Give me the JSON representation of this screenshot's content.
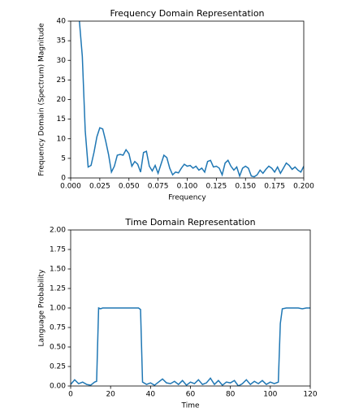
{
  "chart_data": [
    {
      "type": "line",
      "title": "Frequency Domain Representation",
      "x_label": "Frequency",
      "y_label": "Frequency Domain (Spectrum) Magnitude",
      "x": [
        0.0075,
        0.01,
        0.0125,
        0.015,
        0.0175,
        0.02,
        0.0225,
        0.025,
        0.0275,
        0.03,
        0.0325,
        0.035,
        0.0375,
        0.04,
        0.0425,
        0.045,
        0.0475,
        0.05,
        0.0525,
        0.055,
        0.0575,
        0.06,
        0.0625,
        0.065,
        0.0675,
        0.07,
        0.0725,
        0.075,
        0.0775,
        0.08,
        0.0825,
        0.085,
        0.0875,
        0.09,
        0.0925,
        0.095,
        0.0975,
        0.1,
        0.1025,
        0.105,
        0.1075,
        0.11,
        0.1125,
        0.115,
        0.1175,
        0.12,
        0.1225,
        0.125,
        0.1275,
        0.13,
        0.1325,
        0.135,
        0.1375,
        0.14,
        0.1425,
        0.145,
        0.1475,
        0.15,
        0.1525,
        0.155,
        0.1575,
        0.16,
        0.1625,
        0.165,
        0.1675,
        0.17,
        0.1725,
        0.175,
        0.1775,
        0.18,
        0.1825,
        0.185,
        0.1875,
        0.19,
        0.1925,
        0.195,
        0.1975,
        0.2
      ],
      "series": [
        {
          "color": "#1f77b4",
          "values": [
            40,
            31,
            12,
            2.8,
            3.2,
            6.5,
            10.5,
            12.8,
            12.5,
            9.5,
            6,
            1.5,
            3,
            5.8,
            6,
            5.8,
            7.2,
            6.2,
            3,
            4.2,
            3.5,
            1.5,
            6.5,
            6.8,
            3,
            1.8,
            3.2,
            1.2,
            3.5,
            5.8,
            5.2,
            2.5,
            0.8,
            1.5,
            1.3,
            2.5,
            3.5,
            3,
            3.2,
            2.5,
            3,
            2,
            2.5,
            1.5,
            4.2,
            4.5,
            2.8,
            3,
            2.5,
            0.8,
            3.8,
            4.5,
            3,
            2,
            2.8,
            0.5,
            2.5,
            3,
            2.5,
            0.5,
            0.3,
            0.8,
            2,
            1.2,
            2.2,
            3,
            2.5,
            1.5,
            2.8,
            1.2,
            2.5,
            3.8,
            3.2,
            2.2,
            2.8,
            2,
            1.5,
            3
          ]
        }
      ],
      "xlim": [
        0,
        0.2
      ],
      "ylim": [
        0,
        40
      ],
      "xticks": [
        {
          "value": 0,
          "label": "0.000"
        },
        {
          "value": 0.025,
          "label": "0.025"
        },
        {
          "value": 0.05,
          "label": "0.050"
        },
        {
          "value": 0.075,
          "label": "0.075"
        },
        {
          "value": 0.1,
          "label": "0.100"
        },
        {
          "value": 0.125,
          "label": "0.125"
        },
        {
          "value": 0.15,
          "label": "0.150"
        },
        {
          "value": 0.175,
          "label": "0.175"
        },
        {
          "value": 0.2,
          "label": "0.200"
        }
      ],
      "yticks": [
        0,
        5,
        10,
        15,
        20,
        25,
        30,
        35,
        40
      ]
    },
    {
      "type": "line",
      "title": "Time Domain Representation",
      "x_label": "Time",
      "y_label": "Language Probability",
      "x": [
        0,
        2,
        4,
        6,
        8,
        10,
        12,
        13,
        14,
        15,
        16,
        18,
        20,
        22,
        24,
        26,
        28,
        30,
        32,
        34,
        35,
        36,
        38,
        40,
        42,
        44,
        46,
        48,
        50,
        52,
        54,
        56,
        58,
        60,
        62,
        64,
        66,
        68,
        70,
        72,
        74,
        76,
        78,
        80,
        82,
        84,
        86,
        88,
        90,
        92,
        94,
        96,
        98,
        100,
        102,
        104,
        105,
        106,
        108,
        110,
        112,
        114,
        116,
        118,
        120
      ],
      "series": [
        {
          "color": "#1f77b4",
          "values": [
            0.02,
            0.08,
            0.03,
            0.05,
            0.02,
            0.01,
            0.05,
            0.06,
            1.0,
            0.99,
            1.0,
            1.0,
            1.0,
            1.0,
            1.0,
            1.0,
            1.0,
            1.0,
            1.0,
            1.0,
            0.98,
            0.05,
            0.02,
            0.04,
            0.01,
            0.05,
            0.09,
            0.04,
            0.03,
            0.06,
            0.02,
            0.07,
            0.01,
            0.05,
            0.03,
            0.08,
            0.02,
            0.04,
            0.1,
            0.02,
            0.07,
            0.01,
            0.05,
            0.04,
            0.07,
            0,
            0.03,
            0.08,
            0.02,
            0.06,
            0.03,
            0.07,
            0.02,
            0.05,
            0.03,
            0.05,
            0.8,
            0.99,
            1.0,
            1.0,
            1.0,
            1.0,
            0.99,
            1.0,
            1.0
          ]
        }
      ],
      "xlim": [
        0,
        120
      ],
      "ylim": [
        0,
        2
      ],
      "xticks": [
        0,
        20,
        40,
        60,
        80,
        100,
        120
      ],
      "yticks": [
        {
          "value": 0,
          "label": "0.00"
        },
        {
          "value": 0.25,
          "label": "0.25"
        },
        {
          "value": 0.5,
          "label": "0.50"
        },
        {
          "value": 0.75,
          "label": "0.75"
        },
        {
          "value": 1,
          "label": "1.00"
        },
        {
          "value": 1.25,
          "label": "1.25"
        },
        {
          "value": 1.5,
          "label": "1.50"
        },
        {
          "value": 1.75,
          "label": "1.75"
        },
        {
          "value": 2,
          "label": "2.00"
        }
      ]
    }
  ]
}
